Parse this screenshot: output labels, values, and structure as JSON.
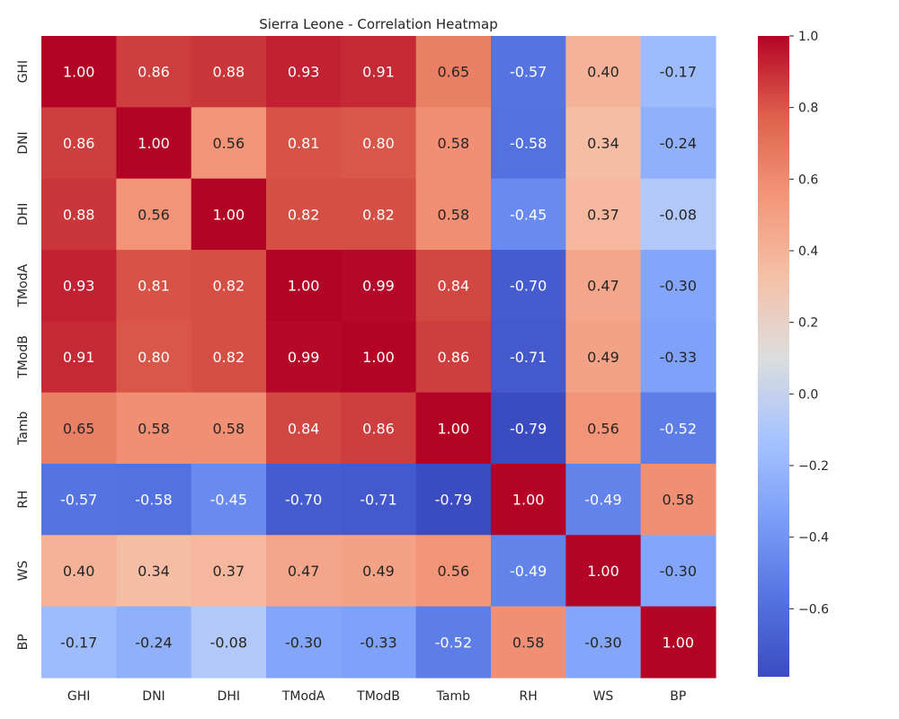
{
  "chart_data": {
    "type": "heatmap",
    "title": "Sierra Leone - Correlation Heatmap",
    "x_categories": [
      "GHI",
      "DNI",
      "DHI",
      "TModA",
      "TModB",
      "Tamb",
      "RH",
      "WS",
      "BP"
    ],
    "y_categories": [
      "GHI",
      "DNI",
      "DHI",
      "TModA",
      "TModB",
      "Tamb",
      "RH",
      "WS",
      "BP"
    ],
    "values": [
      [
        1.0,
        0.86,
        0.88,
        0.93,
        0.91,
        0.65,
        -0.57,
        0.4,
        -0.17
      ],
      [
        0.86,
        1.0,
        0.56,
        0.81,
        0.8,
        0.58,
        -0.58,
        0.34,
        -0.24
      ],
      [
        0.88,
        0.56,
        1.0,
        0.82,
        0.82,
        0.58,
        -0.45,
        0.37,
        -0.08
      ],
      [
        0.93,
        0.81,
        0.82,
        1.0,
        0.99,
        0.84,
        -0.7,
        0.47,
        -0.3
      ],
      [
        0.91,
        0.8,
        0.82,
        0.99,
        1.0,
        0.86,
        -0.71,
        0.49,
        -0.33
      ],
      [
        0.65,
        0.58,
        0.58,
        0.84,
        0.86,
        1.0,
        -0.79,
        0.56,
        -0.52
      ],
      [
        -0.57,
        -0.58,
        -0.45,
        -0.7,
        -0.71,
        -0.79,
        1.0,
        -0.49,
        0.58
      ],
      [
        0.4,
        0.34,
        0.37,
        0.47,
        0.49,
        0.56,
        -0.49,
        1.0,
        -0.3
      ],
      [
        -0.17,
        -0.24,
        -0.08,
        -0.3,
        -0.33,
        -0.52,
        0.58,
        -0.3,
        1.0
      ]
    ],
    "colormap": "coolwarm",
    "vmin": -0.79,
    "vmax": 1.0,
    "colorbar_ticks": [
      "1.0",
      "0.8",
      "0.6",
      "0.4",
      "0.2",
      "0.0",
      "−0.2",
      "−0.4",
      "−0.6"
    ],
    "colorbar_tick_values": [
      1.0,
      0.8,
      0.6,
      0.4,
      0.2,
      0.0,
      -0.2,
      -0.4,
      -0.6
    ],
    "annotation_format": "2 decimals"
  }
}
